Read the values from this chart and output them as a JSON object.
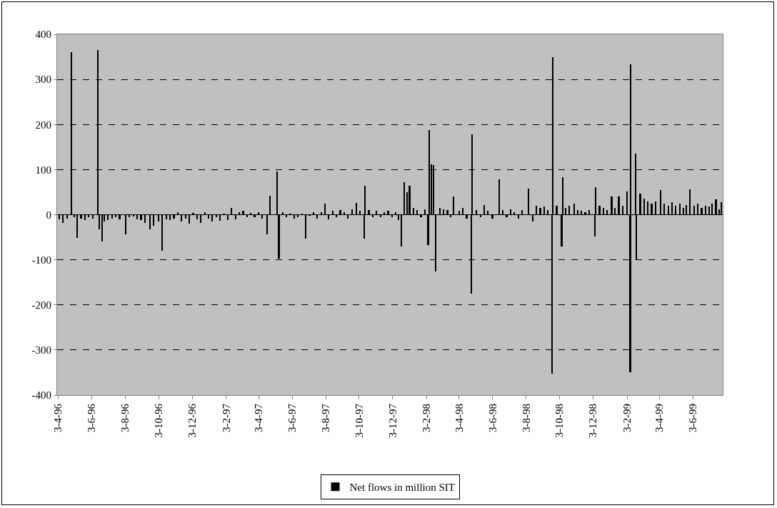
{
  "chart_data": {
    "type": "bar",
    "series": [
      {
        "name": "Net flows in million SIT",
        "color": "#000000",
        "x": [
          "1996-04-05",
          "1996-04-12",
          "1996-04-19",
          "1996-04-27",
          "1996-05-03",
          "1996-05-08",
          "1996-05-15",
          "1996-05-22",
          "1996-05-29",
          "1996-06-05",
          "1996-06-14",
          "1996-06-17",
          "1996-06-22",
          "1996-06-26",
          "1996-07-03",
          "1996-07-10",
          "1996-07-17",
          "1996-07-24",
          "1996-08-04",
          "1996-08-11",
          "1996-08-18",
          "1996-08-25",
          "1996-09-01",
          "1996-09-08",
          "1996-09-17",
          "1996-09-24",
          "1996-10-03",
          "1996-10-10",
          "1996-10-17",
          "1996-10-24",
          "1996-10-31",
          "1996-11-07",
          "1996-11-14",
          "1996-11-21",
          "1996-11-28",
          "1996-12-05",
          "1996-12-12",
          "1996-12-19",
          "1996-12-26",
          "1997-01-02",
          "1997-01-09",
          "1997-01-16",
          "1997-01-23",
          "1997-01-30",
          "1997-02-06",
          "1997-02-13",
          "1997-02-20",
          "1997-02-27",
          "1997-03-06",
          "1997-03-13",
          "1997-03-20",
          "1997-03-27",
          "1997-04-03",
          "1997-04-10",
          "1997-04-19",
          "1997-04-24",
          "1997-05-07",
          "1997-05-10",
          "1997-05-17",
          "1997-05-24",
          "1997-05-31",
          "1997-06-07",
          "1997-06-14",
          "1997-06-21",
          "1997-06-28",
          "1997-07-05",
          "1997-07-12",
          "1997-07-19",
          "1997-07-26",
          "1997-08-02",
          "1997-08-09",
          "1997-08-16",
          "1997-08-23",
          "1997-08-30",
          "1997-09-06",
          "1997-09-13",
          "1997-09-20",
          "1997-09-28",
          "1997-10-05",
          "1997-10-12",
          "1997-10-14",
          "1997-10-21",
          "1997-10-28",
          "1997-11-04",
          "1997-11-11",
          "1997-11-18",
          "1997-11-25",
          "1997-12-02",
          "1997-12-09",
          "1997-12-14",
          "1997-12-19",
          "1997-12-24",
          "1997-12-30",
          "1998-01-03",
          "1998-01-10",
          "1998-01-17",
          "1998-01-24",
          "1998-01-31",
          "1998-02-06",
          "1998-02-08",
          "1998-02-12",
          "1998-02-16",
          "1998-02-20",
          "1998-02-27",
          "1998-03-06",
          "1998-03-13",
          "1998-03-19",
          "1998-03-24",
          "1998-04-03",
          "1998-04-10",
          "1998-04-17",
          "1998-04-26",
          "1998-04-27",
          "1998-05-05",
          "1998-05-12",
          "1998-05-19",
          "1998-05-26",
          "1998-06-03",
          "1998-06-15",
          "1998-06-22",
          "1998-06-29",
          "1998-07-06",
          "1998-07-13",
          "1998-07-20",
          "1998-07-27",
          "1998-08-08",
          "1998-08-15",
          "1998-08-22",
          "1998-08-29",
          "1998-09-05",
          "1998-09-12",
          "1998-09-20",
          "1998-09-21",
          "1998-09-28",
          "1998-10-07",
          "1998-10-09",
          "1998-10-14",
          "1998-10-21",
          "1998-10-30",
          "1998-11-05",
          "1998-11-12",
          "1998-11-19",
          "1998-11-26",
          "1998-12-07",
          "1998-12-08",
          "1998-12-15",
          "1998-12-22",
          "1998-12-29",
          "1999-01-06",
          "1999-01-12",
          "1999-01-19",
          "1999-01-26",
          "1999-02-03",
          "1999-02-09",
          "1999-02-10",
          "1999-02-19",
          "1999-02-20",
          "1999-02-27",
          "1999-03-06",
          "1999-03-13",
          "1999-03-20",
          "1999-03-27",
          "1999-04-05",
          "1999-04-12",
          "1999-04-19",
          "1999-04-26",
          "1999-05-03",
          "1999-05-10",
          "1999-05-17",
          "1999-05-22",
          "1999-05-29",
          "1999-06-05",
          "1999-06-12",
          "1999-06-19",
          "1999-06-26",
          "1999-07-03",
          "1999-07-08",
          "1999-07-15",
          "1999-07-21",
          "1999-07-25"
        ],
        "values": [
          -10,
          -18,
          -8,
          361,
          -5,
          -51,
          -8,
          -12,
          -6,
          -8,
          365,
          -33,
          -59,
          -15,
          -12,
          -8,
          -5,
          -10,
          -43,
          -6,
          -4,
          -10,
          -12,
          -18,
          -33,
          -25,
          -15,
          -80,
          -10,
          -12,
          -8,
          5,
          -15,
          -8,
          -20,
          4,
          -10,
          -18,
          5,
          -8,
          -15,
          -5,
          -14,
          3,
          -12,
          15,
          -10,
          5,
          8,
          -6,
          4,
          -5,
          6,
          -8,
          -43,
          42,
          96,
          -98,
          5,
          -5,
          3,
          -8,
          -5,
          2,
          -53,
          -3,
          5,
          -8,
          6,
          25,
          -10,
          8,
          -5,
          10,
          5,
          -8,
          12,
          26,
          8,
          -53,
          64,
          10,
          -5,
          8,
          -5,
          5,
          8,
          -5,
          6,
          -12,
          -70,
          72,
          50,
          64,
          15,
          10,
          -5,
          12,
          -67,
          187,
          112,
          110,
          -126,
          15,
          12,
          10,
          -5,
          40,
          8,
          15,
          -8,
          -175,
          179,
          10,
          -5,
          22,
          8,
          -8,
          78,
          10,
          -5,
          12,
          5,
          -8,
          10,
          58,
          -15,
          20,
          15,
          18,
          10,
          -352,
          349,
          20,
          -70,
          83,
          15,
          20,
          25,
          10,
          8,
          5,
          10,
          -48,
          61,
          20,
          15,
          10,
          40,
          15,
          40,
          20,
          51,
          -349,
          334,
          136,
          -101,
          46,
          35,
          30,
          25,
          30,
          54,
          25,
          20,
          28,
          20,
          25,
          15,
          22,
          56,
          20,
          25,
          15,
          20,
          18,
          25,
          34,
          12,
          27
        ]
      }
    ],
    "xlim": [
      "1996-04-01",
      "1999-07-27"
    ],
    "xticks": [
      {
        "value": "1996-04-03",
        "label": "3-4-96"
      },
      {
        "value": "1996-06-03",
        "label": "3-6-96"
      },
      {
        "value": "1996-08-03",
        "label": "3-8-96"
      },
      {
        "value": "1996-10-03",
        "label": "3-10-96"
      },
      {
        "value": "1996-12-03",
        "label": "3-12-96"
      },
      {
        "value": "1997-02-03",
        "label": "3-2-97"
      },
      {
        "value": "1997-04-03",
        "label": "3-4-97"
      },
      {
        "value": "1997-06-03",
        "label": "3-6-97"
      },
      {
        "value": "1997-08-03",
        "label": "3-8-97"
      },
      {
        "value": "1997-10-03",
        "label": "3-10-97"
      },
      {
        "value": "1997-12-03",
        "label": "3-12-97"
      },
      {
        "value": "1998-02-03",
        "label": "3-2-98"
      },
      {
        "value": "1998-04-03",
        "label": "3-4-98"
      },
      {
        "value": "1998-06-03",
        "label": "3-6-98"
      },
      {
        "value": "1998-08-03",
        "label": "3-8-98"
      },
      {
        "value": "1998-10-03",
        "label": "3-10-98"
      },
      {
        "value": "1998-12-03",
        "label": "3-12-98"
      },
      {
        "value": "1999-02-03",
        "label": "3-2-99"
      },
      {
        "value": "1999-04-03",
        "label": "3-4-99"
      },
      {
        "value": "1999-06-03",
        "label": "3-6-99"
      }
    ],
    "ylim": [
      -400,
      400
    ],
    "yticks": [
      -400,
      -300,
      -200,
      -100,
      0,
      100,
      200,
      300,
      400
    ],
    "grid": "y",
    "legend": "bottom"
  }
}
